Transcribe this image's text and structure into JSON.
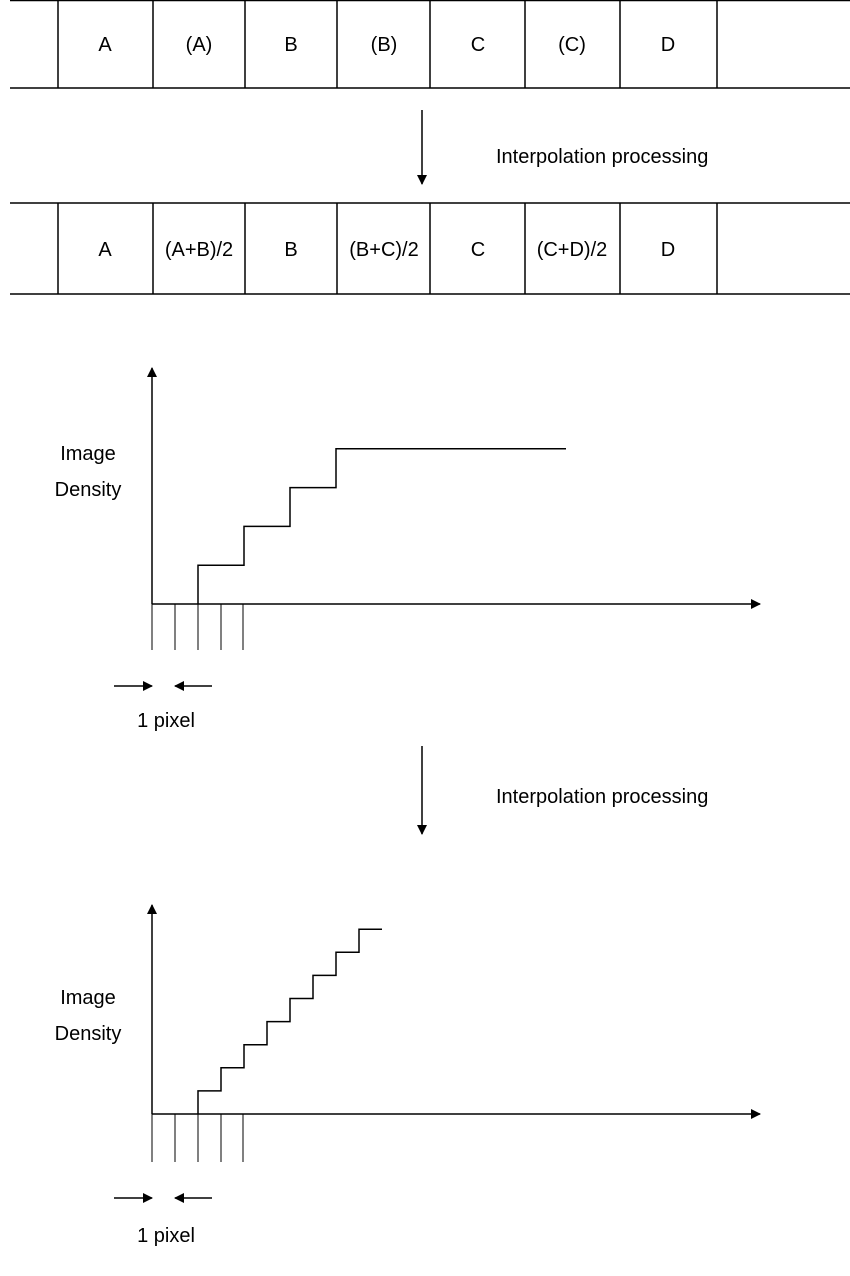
{
  "row_before": {
    "cells": [
      "A",
      "(A)",
      "B",
      "(B)",
      "C",
      "(C)",
      "D"
    ]
  },
  "row_after": {
    "cells": [
      "A",
      "(A+B)/2",
      "B",
      "(B+C)/2",
      "C",
      "(C+D)/2",
      "D"
    ]
  },
  "arrow_label_top": "Interpolation processing",
  "arrow_label_middle": "Interpolation processing",
  "graph_top": {
    "ylabel_line1": "Image",
    "ylabel_line2": "Density",
    "pixel_label": "1 pixel",
    "step_profile": [
      0,
      0,
      1,
      1,
      2,
      2,
      3,
      3,
      4,
      4,
      4,
      4,
      4,
      4,
      4,
      4,
      4,
      4
    ]
  },
  "graph_bottom": {
    "ylabel_line1": "Image",
    "ylabel_line2": "Density",
    "pixel_label": "1 pixel",
    "step_profile": [
      0,
      0,
      1,
      2,
      3,
      4,
      5,
      6,
      7,
      8
    ]
  }
}
